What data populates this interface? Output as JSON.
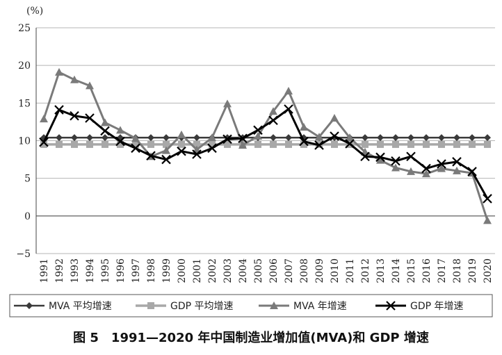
{
  "chart_data": {
    "type": "line",
    "unit_label": "(%)",
    "caption": "图 5　1991—2020 年中国制造业增加值(MVA)和 GDP 增速",
    "ylim": [
      -5,
      25
    ],
    "yticks": [
      "25",
      "20",
      "15",
      "10",
      "5",
      "0",
      "−5"
    ],
    "grid": true,
    "legend_position": "bottom",
    "x": [
      "1991",
      "1992",
      "1993",
      "1994",
      "1995",
      "1996",
      "1997",
      "1998",
      "1999",
      "2000",
      "2001",
      "2002",
      "2003",
      "2004",
      "2005",
      "2006",
      "2007",
      "2008",
      "2009",
      "2010",
      "2011",
      "2012",
      "2013",
      "2014",
      "2015",
      "2016",
      "2017",
      "2018",
      "2019",
      "2020"
    ],
    "series": [
      {
        "name": "MVA 平均增速",
        "marker": "diamond",
        "color": "#3a3a3a",
        "values": [
          10.4,
          10.4,
          10.4,
          10.4,
          10.4,
          10.4,
          10.4,
          10.4,
          10.4,
          10.4,
          10.4,
          10.4,
          10.4,
          10.4,
          10.4,
          10.4,
          10.4,
          10.4,
          10.4,
          10.4,
          10.4,
          10.4,
          10.4,
          10.4,
          10.4,
          10.4,
          10.4,
          10.4,
          10.4,
          10.4
        ]
      },
      {
        "name": "GDP 平均增速",
        "marker": "square",
        "color": "#a8a8a8",
        "values": [
          9.5,
          9.5,
          9.5,
          9.5,
          9.5,
          9.5,
          9.5,
          9.5,
          9.5,
          9.5,
          9.5,
          9.5,
          9.5,
          9.5,
          9.5,
          9.5,
          9.5,
          9.5,
          9.5,
          9.5,
          9.5,
          9.5,
          9.5,
          9.5,
          9.5,
          9.5,
          9.5,
          9.5,
          9.5,
          9.5
        ]
      },
      {
        "name": "MVA 年增速",
        "marker": "triangle",
        "color": "#7a7a7a",
        "values": [
          12.9,
          19.1,
          18.1,
          17.3,
          12.4,
          11.4,
          10.3,
          7.9,
          8.7,
          10.8,
          8.8,
          10.4,
          14.9,
          9.4,
          10.6,
          13.9,
          16.6,
          11.8,
          10.5,
          13.0,
          10.4,
          8.5,
          7.4,
          6.4,
          5.9,
          5.6,
          6.3,
          6.0,
          5.7,
          -0.6
        ]
      },
      {
        "name": "GDP 年增速",
        "marker": "x",
        "color": "#000000",
        "values": [
          9.8,
          14.1,
          13.3,
          13.0,
          11.3,
          9.9,
          9.0,
          8.0,
          7.5,
          8.6,
          8.2,
          9.0,
          10.2,
          10.3,
          11.4,
          12.7,
          14.2,
          9.9,
          9.4,
          10.6,
          9.6,
          7.9,
          7.8,
          7.3,
          7.9,
          6.3,
          6.9,
          7.2,
          5.9,
          2.3
        ]
      }
    ]
  }
}
